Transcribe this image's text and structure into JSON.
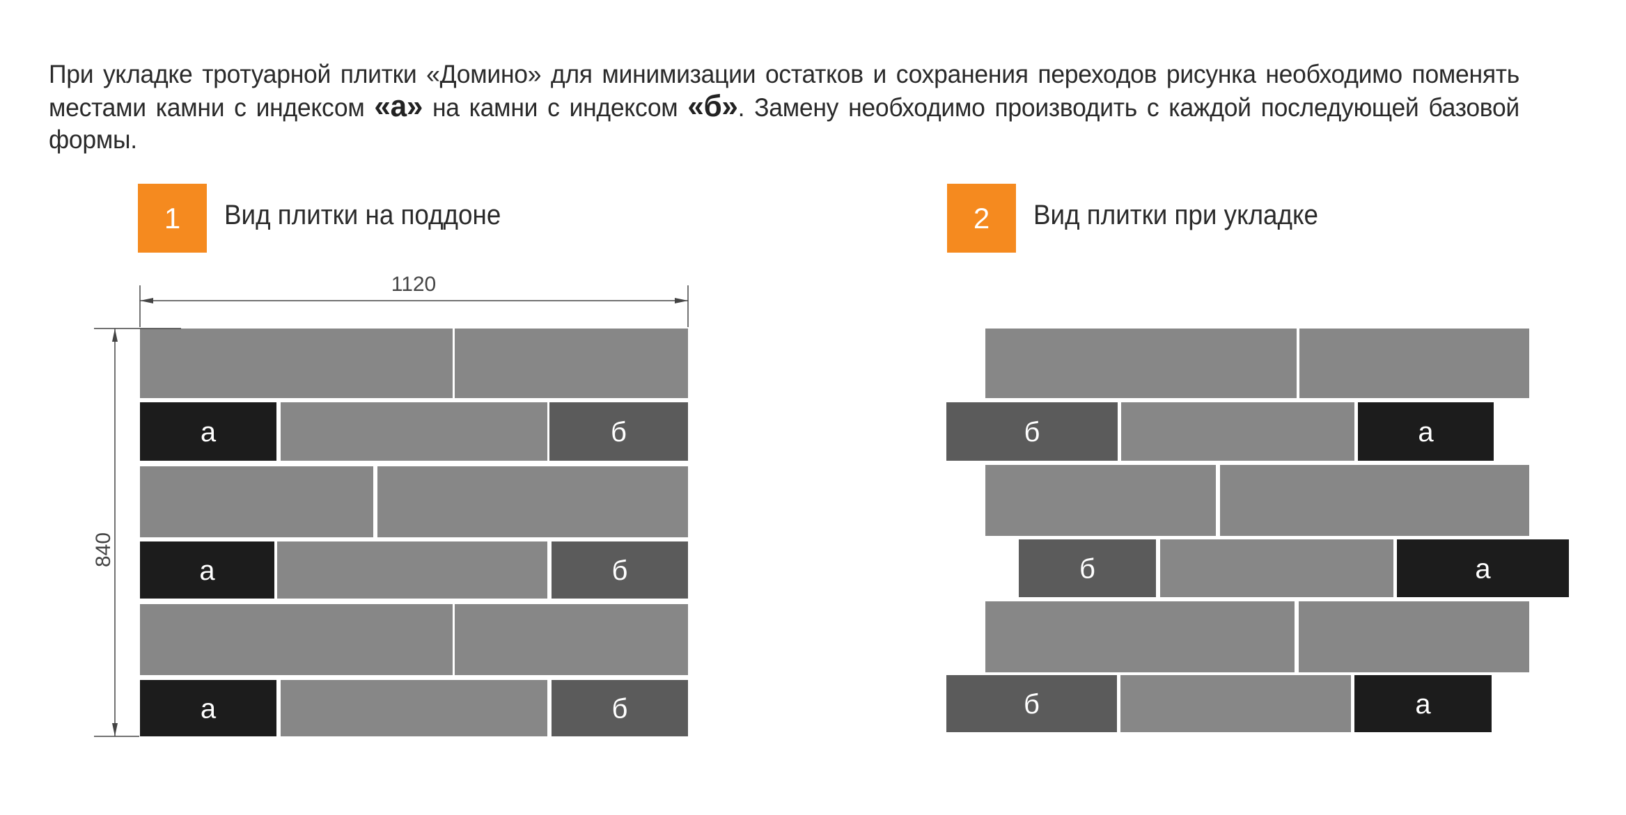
{
  "intro": {
    "part1": "При укладке тротуарной плитки «Домино» для минимизации остатков и сохранения переходов рисунка необходимо поменять местами камни с индексом ",
    "key_a": "«а»",
    "part2": " на камни с индексом ",
    "key_b": "«б»",
    "part3": ". Замену необходимо производить с каждой последующей базовой формы."
  },
  "panel1": {
    "number": "1",
    "title": "Вид плитки на поддоне"
  },
  "panel2": {
    "number": "2",
    "title": "Вид плитки при укладке"
  },
  "dimensions": {
    "width": "1120",
    "height": "840"
  },
  "colors": {
    "accent": "#f58a1f",
    "light": "#878787",
    "dark": "#1c1c1c",
    "medium": "#5b5b5b"
  },
  "labels": {
    "a": "а",
    "b": "б"
  }
}
